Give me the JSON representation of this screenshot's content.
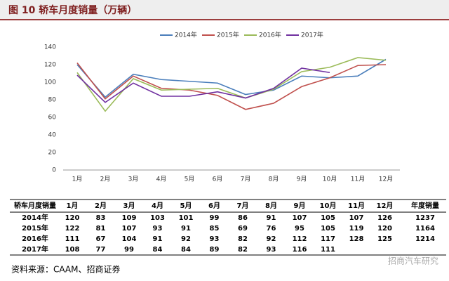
{
  "chart_data": {
    "type": "line",
    "title": "图 10 轿车月度销量（万辆）",
    "categories": [
      "1月",
      "2月",
      "3月",
      "4月",
      "5月",
      "6月",
      "7月",
      "8月",
      "9月",
      "10月",
      "11月",
      "12月"
    ],
    "series": [
      {
        "name": "2014年",
        "color": "#4a7ebb",
        "values": [
          120,
          83,
          109,
          103,
          101,
          99,
          86,
          91,
          107,
          105,
          107,
          126
        ],
        "total": 1237
      },
      {
        "name": "2015年",
        "color": "#c0504d",
        "values": [
          122,
          81,
          107,
          93,
          91,
          85,
          69,
          76,
          95,
          105,
          119,
          120
        ],
        "total": 1164
      },
      {
        "name": "2016年",
        "color": "#9bbb59",
        "values": [
          111,
          67,
          104,
          91,
          92,
          93,
          82,
          92,
          112,
          117,
          128,
          125
        ],
        "total": 1214
      },
      {
        "name": "2017年",
        "color": "#7030a0",
        "values": [
          108,
          77,
          99,
          84,
          84,
          89,
          82,
          93,
          116,
          111,
          null,
          null
        ]
      }
    ],
    "ylim": [
      0,
      140
    ],
    "yticks": [
      0,
      20,
      40,
      60,
      80,
      100,
      120,
      140
    ],
    "legend": "top",
    "table_header": "轿车月度销量",
    "table_total_header": "年度销量",
    "source": "资料来源：CAAM、招商证券",
    "watermark": "招商汽车研究"
  }
}
